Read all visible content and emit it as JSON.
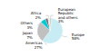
{
  "chart_data": {
    "type": "pie",
    "categories": [
      "Europe\n58%",
      "Americas\n27%",
      "Japan\n7%",
      "Others\n3%",
      "Africa\n2%",
      "European\nRepublic\nand others\n3%"
    ],
    "values": [
      58,
      27,
      7,
      3,
      2,
      3
    ],
    "colors": [
      "#c8ecf4",
      "#c0c0c0",
      "#00c8d4",
      "#606060",
      "#e8e8e8",
      "#d0d0d0"
    ]
  }
}
